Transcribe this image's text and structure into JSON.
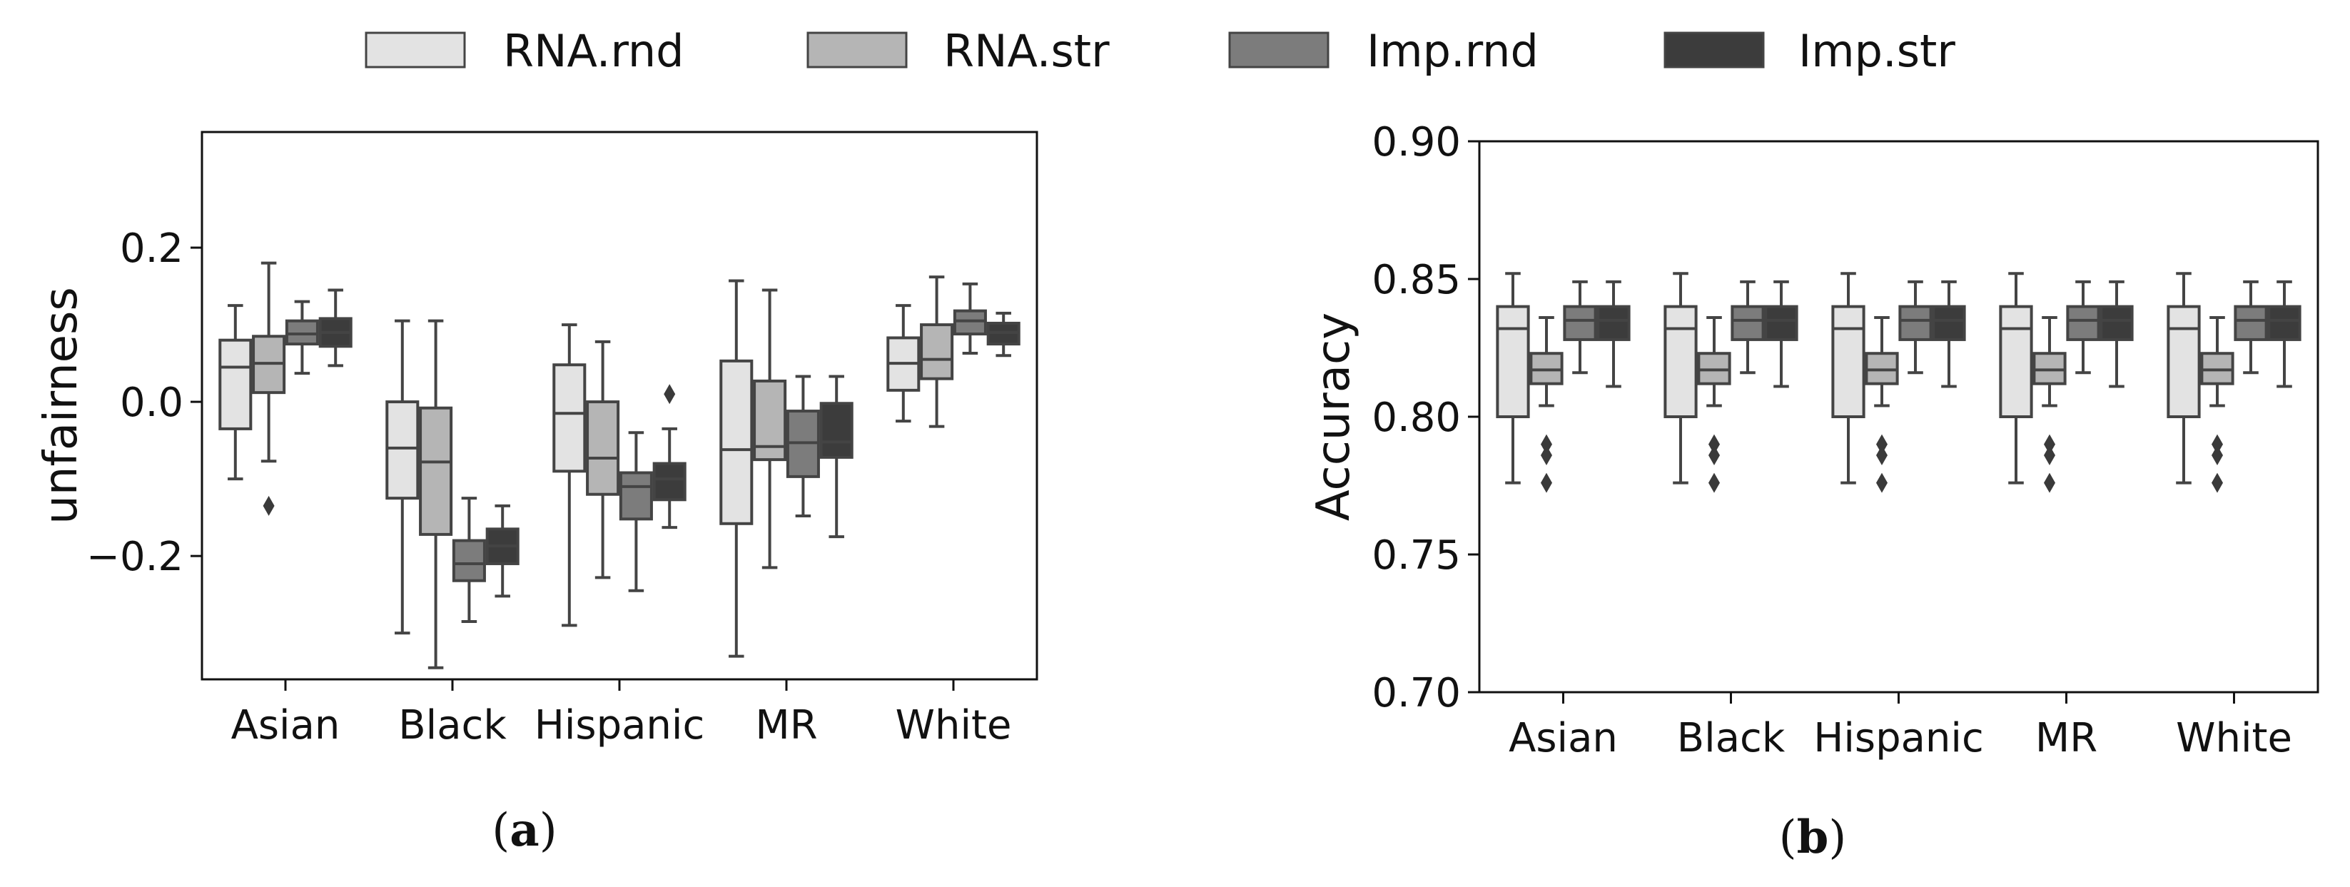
{
  "legend": {
    "entries": [
      {
        "label": "RNA.rnd",
        "color": "#e3e3e3"
      },
      {
        "label": "RNA.str",
        "color": "#b5b5b5"
      },
      {
        "label": "Imp.rnd",
        "color": "#7c7c7c"
      },
      {
        "label": "Imp.str",
        "color": "#3c3c3c"
      }
    ]
  },
  "captions": {
    "a": {
      "open": "(",
      "letter": "a",
      "close": ")"
    },
    "b": {
      "open": "(",
      "letter": "b",
      "close": ")"
    }
  },
  "chart_data": [
    {
      "type": "box",
      "id": "a",
      "title": "",
      "xlabel": "",
      "ylabel": "unfairness",
      "ylim": [
        -0.36,
        0.35
      ],
      "yticks": [
        {
          "value": -0.2,
          "label": "−0.2"
        },
        {
          "value": 0.0,
          "label": "0.0"
        },
        {
          "value": 0.2,
          "label": "0.2"
        }
      ],
      "categories": [
        "Asian",
        "Black",
        "Hispanic",
        "MR",
        "White"
      ],
      "series": [
        {
          "name": "RNA.rnd",
          "boxes": [
            {
              "whislo": -0.1,
              "q1": -0.035,
              "med": 0.045,
              "q3": 0.08,
              "whishi": 0.125,
              "fliers": []
            },
            {
              "whislo": -0.3,
              "q1": -0.125,
              "med": -0.06,
              "q3": 0.0,
              "whishi": 0.105,
              "fliers": []
            },
            {
              "whislo": -0.29,
              "q1": -0.09,
              "med": -0.015,
              "q3": 0.048,
              "whishi": 0.1,
              "fliers": []
            },
            {
              "whislo": -0.33,
              "q1": -0.158,
              "med": -0.062,
              "q3": 0.053,
              "whishi": 0.157,
              "fliers": []
            },
            {
              "whislo": -0.025,
              "q1": 0.015,
              "med": 0.05,
              "q3": 0.083,
              "whishi": 0.125,
              "fliers": []
            }
          ]
        },
        {
          "name": "RNA.str",
          "boxes": [
            {
              "whislo": -0.077,
              "q1": 0.012,
              "med": 0.05,
              "q3": 0.085,
              "whishi": 0.18,
              "fliers": [
                -0.135
              ]
            },
            {
              "whislo": -0.345,
              "q1": -0.172,
              "med": -0.078,
              "q3": -0.008,
              "whishi": 0.105,
              "fliers": []
            },
            {
              "whislo": -0.228,
              "q1": -0.12,
              "med": -0.073,
              "q3": 0.0,
              "whishi": 0.078,
              "fliers": []
            },
            {
              "whislo": -0.215,
              "q1": -0.075,
              "med": -0.058,
              "q3": 0.027,
              "whishi": 0.145,
              "fliers": []
            },
            {
              "whislo": -0.032,
              "q1": 0.03,
              "med": 0.055,
              "q3": 0.1,
              "whishi": 0.162,
              "fliers": []
            }
          ]
        },
        {
          "name": "Imp.rnd",
          "boxes": [
            {
              "whislo": 0.037,
              "q1": 0.075,
              "med": 0.088,
              "q3": 0.105,
              "whishi": 0.13,
              "fliers": []
            },
            {
              "whislo": -0.285,
              "q1": -0.232,
              "med": -0.21,
              "q3": -0.18,
              "whishi": -0.125,
              "fliers": []
            },
            {
              "whislo": -0.245,
              "q1": -0.152,
              "med": -0.11,
              "q3": -0.092,
              "whishi": -0.04,
              "fliers": []
            },
            {
              "whislo": -0.148,
              "q1": -0.097,
              "med": -0.053,
              "q3": -0.012,
              "whishi": 0.033,
              "fliers": []
            },
            {
              "whislo": 0.063,
              "q1": 0.088,
              "med": 0.105,
              "q3": 0.118,
              "whishi": 0.153,
              "fliers": []
            }
          ]
        },
        {
          "name": "Imp.str",
          "boxes": [
            {
              "whislo": 0.047,
              "q1": 0.072,
              "med": 0.09,
              "q3": 0.108,
              "whishi": 0.145,
              "fliers": []
            },
            {
              "whislo": -0.252,
              "q1": -0.21,
              "med": -0.187,
              "q3": -0.165,
              "whishi": -0.135,
              "fliers": []
            },
            {
              "whislo": -0.163,
              "q1": -0.127,
              "med": -0.1,
              "q3": -0.08,
              "whishi": -0.035,
              "fliers": [
                0.01
              ]
            },
            {
              "whislo": -0.175,
              "q1": -0.072,
              "med": -0.052,
              "q3": -0.002,
              "whishi": 0.033,
              "fliers": []
            },
            {
              "whislo": 0.06,
              "q1": 0.075,
              "med": 0.09,
              "q3": 0.102,
              "whishi": 0.115,
              "fliers": []
            }
          ]
        }
      ]
    },
    {
      "type": "box",
      "id": "b",
      "title": "",
      "xlabel": "",
      "ylabel": "Accuracy",
      "ylim": [
        0.7,
        0.9
      ],
      "yticks": [
        {
          "value": 0.7,
          "label": "0.70"
        },
        {
          "value": 0.75,
          "label": "0.75"
        },
        {
          "value": 0.8,
          "label": "0.80"
        },
        {
          "value": 0.85,
          "label": "0.85"
        },
        {
          "value": 0.9,
          "label": "0.90"
        }
      ],
      "categories": [
        "Asian",
        "Black",
        "Hispanic",
        "MR",
        "White"
      ],
      "series": [
        {
          "name": "RNA.rnd",
          "boxes": [
            {
              "whislo": 0.776,
              "q1": 0.8,
              "med": 0.832,
              "q3": 0.84,
              "whishi": 0.852,
              "fliers": []
            },
            {
              "whislo": 0.776,
              "q1": 0.8,
              "med": 0.832,
              "q3": 0.84,
              "whishi": 0.852,
              "fliers": []
            },
            {
              "whislo": 0.776,
              "q1": 0.8,
              "med": 0.832,
              "q3": 0.84,
              "whishi": 0.852,
              "fliers": []
            },
            {
              "whislo": 0.776,
              "q1": 0.8,
              "med": 0.832,
              "q3": 0.84,
              "whishi": 0.852,
              "fliers": []
            },
            {
              "whislo": 0.776,
              "q1": 0.8,
              "med": 0.832,
              "q3": 0.84,
              "whishi": 0.852,
              "fliers": []
            }
          ]
        },
        {
          "name": "RNA.str",
          "boxes": [
            {
              "whislo": 0.804,
              "q1": 0.812,
              "med": 0.817,
              "q3": 0.823,
              "whishi": 0.836,
              "fliers": [
                0.776,
                0.786,
                0.79
              ]
            },
            {
              "whislo": 0.804,
              "q1": 0.812,
              "med": 0.817,
              "q3": 0.823,
              "whishi": 0.836,
              "fliers": [
                0.776,
                0.786,
                0.79
              ]
            },
            {
              "whislo": 0.804,
              "q1": 0.812,
              "med": 0.817,
              "q3": 0.823,
              "whishi": 0.836,
              "fliers": [
                0.776,
                0.786,
                0.79
              ]
            },
            {
              "whislo": 0.804,
              "q1": 0.812,
              "med": 0.817,
              "q3": 0.823,
              "whishi": 0.836,
              "fliers": [
                0.776,
                0.786,
                0.79
              ]
            },
            {
              "whislo": 0.804,
              "q1": 0.812,
              "med": 0.817,
              "q3": 0.823,
              "whishi": 0.836,
              "fliers": [
                0.776,
                0.786,
                0.79
              ]
            }
          ]
        },
        {
          "name": "Imp.rnd",
          "boxes": [
            {
              "whislo": 0.816,
              "q1": 0.828,
              "med": 0.835,
              "q3": 0.84,
              "whishi": 0.849,
              "fliers": []
            },
            {
              "whislo": 0.816,
              "q1": 0.828,
              "med": 0.835,
              "q3": 0.84,
              "whishi": 0.849,
              "fliers": []
            },
            {
              "whislo": 0.816,
              "q1": 0.828,
              "med": 0.835,
              "q3": 0.84,
              "whishi": 0.849,
              "fliers": []
            },
            {
              "whislo": 0.816,
              "q1": 0.828,
              "med": 0.835,
              "q3": 0.84,
              "whishi": 0.849,
              "fliers": []
            },
            {
              "whislo": 0.816,
              "q1": 0.828,
              "med": 0.835,
              "q3": 0.84,
              "whishi": 0.849,
              "fliers": []
            }
          ]
        },
        {
          "name": "Imp.str",
          "boxes": [
            {
              "whislo": 0.811,
              "q1": 0.828,
              "med": 0.835,
              "q3": 0.84,
              "whishi": 0.849,
              "fliers": []
            },
            {
              "whislo": 0.811,
              "q1": 0.828,
              "med": 0.835,
              "q3": 0.84,
              "whishi": 0.849,
              "fliers": []
            },
            {
              "whislo": 0.811,
              "q1": 0.828,
              "med": 0.835,
              "q3": 0.84,
              "whishi": 0.849,
              "fliers": []
            },
            {
              "whislo": 0.811,
              "q1": 0.828,
              "med": 0.835,
              "q3": 0.84,
              "whishi": 0.849,
              "fliers": []
            },
            {
              "whislo": 0.811,
              "q1": 0.828,
              "med": 0.835,
              "q3": 0.84,
              "whishi": 0.849,
              "fliers": []
            }
          ]
        }
      ]
    }
  ]
}
